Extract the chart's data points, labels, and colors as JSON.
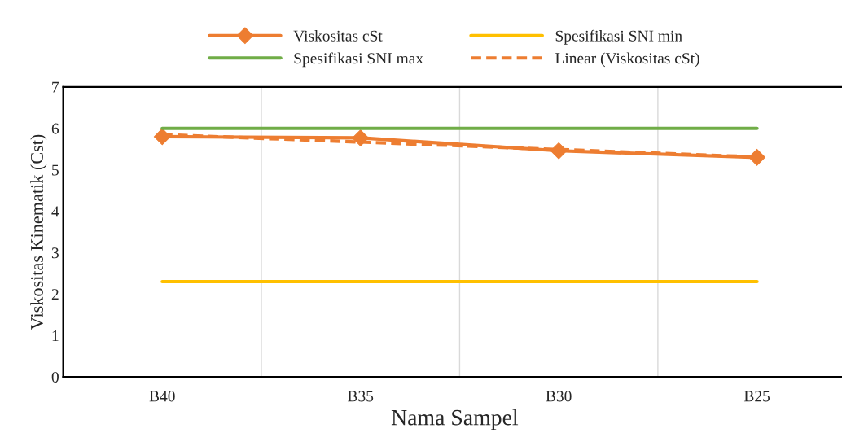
{
  "chart_data": {
    "type": "line",
    "xlabel": "Nama Sampel",
    "ylabel": "Viskositas Kinematik (Cst)",
    "categories": [
      "B40",
      "B35",
      "B30",
      "B25"
    ],
    "series": [
      {
        "name": "Viskositas cSt",
        "color": "#ed7d31",
        "values": [
          5.8,
          5.77,
          5.46,
          5.3
        ],
        "marker": "diamond",
        "line_style": "solid"
      },
      {
        "name": "Spesifikasi SNI min",
        "color": "#ffc000",
        "values": [
          2.3,
          2.3,
          2.3,
          2.3
        ],
        "marker": "none",
        "line_style": "solid"
      },
      {
        "name": "Spesifikasi SNI max",
        "color": "#70ad47",
        "values": [
          6,
          6,
          6,
          6
        ],
        "marker": "none",
        "line_style": "solid"
      },
      {
        "name": "Linear (Viskositas cSt)",
        "color": "#ed7d31",
        "values": [
          5.85,
          5.67,
          5.49,
          5.31
        ],
        "marker": "none",
        "line_style": "dashed"
      }
    ],
    "ylim": [
      0,
      7
    ],
    "yticks": [
      0,
      1,
      2,
      3,
      4,
      5,
      6,
      7
    ],
    "grid": "x",
    "legend": "top"
  }
}
